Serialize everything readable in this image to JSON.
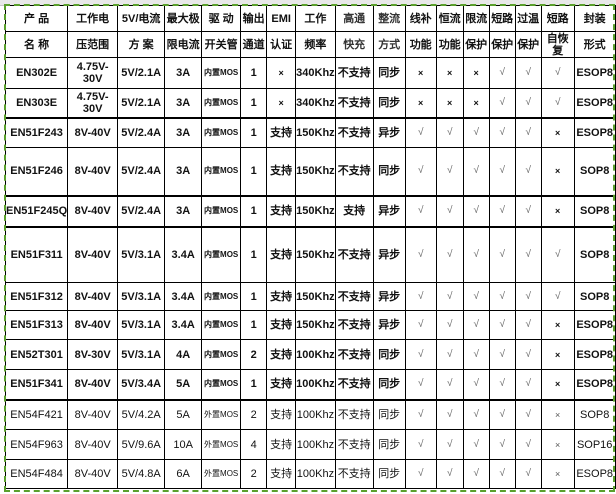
{
  "header_row1": [
    "产 品",
    "工作电",
    "5V/电流",
    "最大极",
    "驱 动",
    "输出",
    "EMI",
    "工作",
    "高通",
    "整流",
    "线补",
    "恒流",
    "限流",
    "短路",
    "过温",
    "短路",
    "封装"
  ],
  "header_row2": [
    "名 称",
    "压范围",
    "方 案",
    "限电流",
    "开关管",
    "通道",
    "认证",
    "频率",
    "快充",
    "方式",
    "功能",
    "功能",
    "保护",
    "保护",
    "保护",
    "自恢复",
    "形式"
  ],
  "rows": [
    {
      "bold": true,
      "cells": [
        "EN302E",
        "4.75V-30V",
        "5V/2.1A",
        "3A",
        "内置MOS",
        "1",
        "×",
        "340Khz",
        "不支持",
        "同步",
        "×",
        "×",
        "×",
        "√",
        "√",
        "√",
        "ESOP8"
      ]
    },
    {
      "bold": true,
      "cells": [
        "EN303E",
        "4.75V-30V",
        "5V/2.1A",
        "3A",
        "内置MOS",
        "1",
        "×",
        "340Khz",
        "不支持",
        "同步",
        "×",
        "×",
        "×",
        "√",
        "√",
        "√",
        "ESOP8"
      ]
    },
    {
      "bold": true,
      "cells": [
        "EN51F243",
        "8V-40V",
        "5V/2.4A",
        "3A",
        "内置MOS",
        "1",
        "支持",
        "150Khz",
        "不支持",
        "异步",
        "√",
        "√",
        "√",
        "√",
        "√",
        "×",
        "ESOP8"
      ]
    },
    {
      "bold": true,
      "cells": [
        "EN51F246",
        "8V-40V",
        "5V/2.4A",
        "3A",
        "内置MOS",
        "1",
        "支持",
        "150Khz",
        "不支持",
        "同步",
        "√",
        "√",
        "√",
        "√",
        "√",
        "×",
        "SOP8"
      ]
    },
    {
      "bold": true,
      "cells": [
        "EN51F245Q",
        "8V-40V",
        "5V/2.4A",
        "3A",
        "内置MOS",
        "1",
        "支持",
        "150Khz",
        "支持",
        "异步",
        "√",
        "√",
        "√",
        "√",
        "√",
        "×",
        "SOP8"
      ]
    },
    {
      "bold": true,
      "cells": [
        "EN51F311",
        "8V-40V",
        "5V/3.1A",
        "3.4A",
        "内置MOS",
        "1",
        "支持",
        "150Khz",
        "不支持",
        "异步",
        "√",
        "√",
        "√",
        "√",
        "√",
        "√",
        "SOP8"
      ]
    },
    {
      "bold": true,
      "cells": [
        "EN51F312",
        "8V-40V",
        "5V/3.1A",
        "3.4A",
        "内置MOS",
        "1",
        "支持",
        "150Khz",
        "不支持",
        "异步",
        "√",
        "√",
        "√",
        "√",
        "√",
        "√",
        "SOP8"
      ]
    },
    {
      "bold": true,
      "cells": [
        "EN51F313",
        "8V-40V",
        "5V/3.1A",
        "3.4A",
        "内置MOS",
        "1",
        "支持",
        "150Khz",
        "不支持",
        "异步",
        "√",
        "√",
        "√",
        "√",
        "√",
        "×",
        "ESOP8"
      ]
    },
    {
      "bold": true,
      "cells": [
        "EN52T301",
        "8V-30V",
        "5V/3.1A",
        "4A",
        "内置MOS",
        "2",
        "支持",
        "100Khz",
        "不支持",
        "同步",
        "√",
        "√",
        "√",
        "√",
        "√",
        "×",
        "ESOP8"
      ]
    },
    {
      "bold": true,
      "cells": [
        "EN51F341",
        "8V-40V",
        "5V/3.4A",
        "5A",
        "内置MOS",
        "1",
        "支持",
        "100Khz",
        "不支持",
        "同步",
        "√",
        "√",
        "√",
        "√",
        "√",
        "×",
        "ESOP8"
      ]
    },
    {
      "bold": false,
      "cells": [
        "EN54F421",
        "8V-40V",
        "5V/4.2A",
        "5A",
        "外置MOS",
        "2",
        "支持",
        "100Khz",
        "不支持",
        "同步",
        "√",
        "√",
        "√",
        "√",
        "√",
        "×",
        "SOP8"
      ]
    },
    {
      "bold": false,
      "cells": [
        "EN54F963",
        "8V-40V",
        "5V/9.6A",
        "10A",
        "外置MOS",
        "4",
        "支持",
        "100Khz",
        "不支持",
        "同步",
        "√",
        "√",
        "√",
        "√",
        "√",
        "×",
        "SOP16"
      ]
    },
    {
      "bold": false,
      "cells": [
        "EN54F484",
        "8V-40V",
        "5V/4.8A",
        "6A",
        "外置MOS",
        "2",
        "支持",
        "100Khz",
        "不支持",
        "同步",
        "√",
        "√",
        "√",
        "√",
        "√",
        "×",
        "ESOP8"
      ]
    }
  ]
}
